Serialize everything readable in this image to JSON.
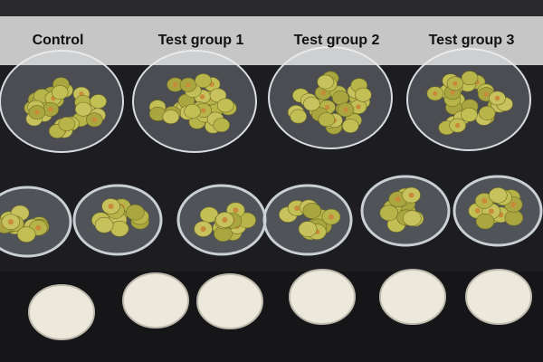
{
  "labels": {
    "control": "Control",
    "test1": "Test group 1",
    "test2": "Test group 2",
    "test3": "Test group 3"
  },
  "colors": {
    "background": "#1c1c1e",
    "olive": "#b5b34a",
    "lid": "#ece8dc",
    "band": "#ebebeb"
  }
}
